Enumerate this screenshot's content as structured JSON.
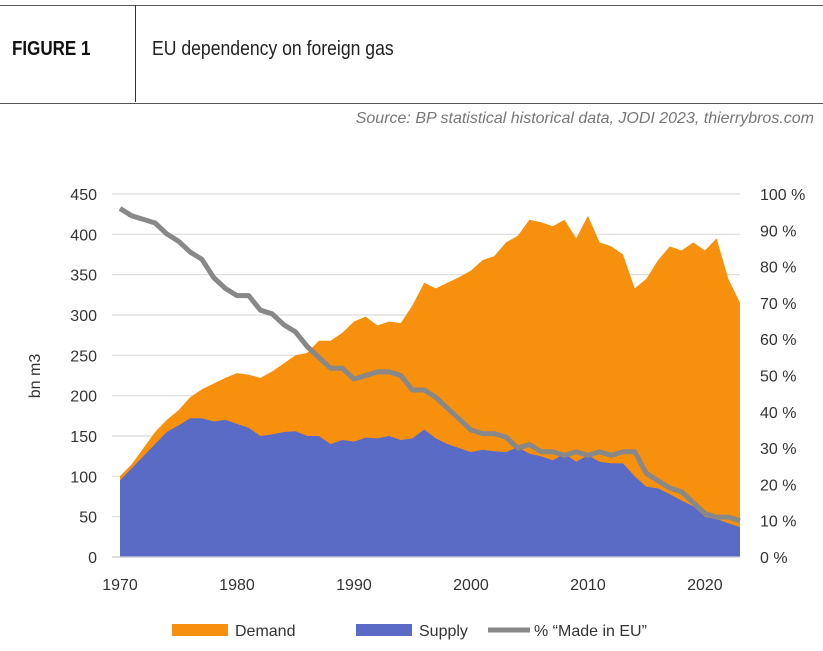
{
  "header": {
    "figure_label": "FIGURE 1",
    "title": "EU dependency on foreign gas",
    "source": "Source: BP statistical historical data, JODI 2023, thierrybros.com"
  },
  "chart_data": {
    "type": "area",
    "title": "EU dependency on foreign gas",
    "ylabel": "bn m3",
    "y2label": "",
    "x": [
      1970,
      1971,
      1972,
      1973,
      1974,
      1975,
      1976,
      1977,
      1978,
      1979,
      1980,
      1981,
      1982,
      1983,
      1984,
      1985,
      1986,
      1987,
      1988,
      1989,
      1990,
      1991,
      1992,
      1993,
      1994,
      1995,
      1996,
      1997,
      1998,
      1999,
      2000,
      2001,
      2002,
      2003,
      2004,
      2005,
      2006,
      2007,
      2008,
      2009,
      2010,
      2011,
      2012,
      2013,
      2014,
      2015,
      2016,
      2017,
      2018,
      2019,
      2020,
      2021,
      2022,
      2023
    ],
    "xlim": [
      1970,
      2023
    ],
    "xticks": [
      1970,
      1980,
      1990,
      2000,
      2010,
      2020
    ],
    "ylim": [
      0,
      450
    ],
    "yticks": [
      0,
      50,
      100,
      150,
      200,
      250,
      300,
      350,
      400,
      450
    ],
    "y2lim": [
      0,
      100
    ],
    "y2ticks": [
      "0 %",
      "10 %",
      "20 %",
      "30 %",
      "40 %",
      "50 %",
      "60 %",
      "70 %",
      "80 %",
      "90 %",
      "100 %"
    ],
    "grid": true,
    "legend_position": "bottom",
    "series": [
      {
        "name": "Demand",
        "kind": "area",
        "axis": "left",
        "color": "#F7900D",
        "values": [
          100,
          115,
          135,
          155,
          170,
          182,
          198,
          208,
          215,
          222,
          228,
          226,
          222,
          230,
          240,
          250,
          253,
          268,
          268,
          278,
          292,
          298,
          287,
          292,
          290,
          312,
          340,
          333,
          340,
          347,
          355,
          368,
          373,
          390,
          398,
          418,
          415,
          410,
          418,
          395,
          423,
          390,
          385,
          375,
          333,
          345,
          368,
          385,
          380,
          390,
          380,
          395,
          345,
          315
        ]
      },
      {
        "name": "Supply",
        "kind": "area",
        "axis": "left",
        "color": "#5A6BC5",
        "values": [
          95,
          110,
          125,
          140,
          155,
          163,
          172,
          172,
          168,
          170,
          165,
          160,
          150,
          152,
          155,
          156,
          150,
          150,
          140,
          145,
          143,
          148,
          147,
          150,
          145,
          147,
          158,
          147,
          140,
          135,
          130,
          133,
          131,
          130,
          136,
          128,
          125,
          120,
          128,
          118,
          126,
          118,
          116,
          116,
          100,
          87,
          85,
          78,
          70,
          63,
          50,
          47,
          42,
          37
        ]
      },
      {
        "name": "% “Made in EU”",
        "kind": "line",
        "axis": "right",
        "color": "#888888",
        "values": [
          96,
          94,
          93,
          92,
          89,
          87,
          84,
          82,
          77,
          74,
          72,
          72,
          68,
          67,
          64,
          62,
          58,
          55,
          52,
          52,
          49,
          50,
          51,
          51,
          50,
          46,
          46,
          44,
          41,
          38,
          35,
          34,
          34,
          33,
          30,
          31,
          29,
          29,
          28,
          29,
          28,
          29,
          28,
          29,
          29,
          23,
          21,
          19,
          18,
          15,
          12,
          11,
          11,
          10
        ]
      }
    ]
  }
}
